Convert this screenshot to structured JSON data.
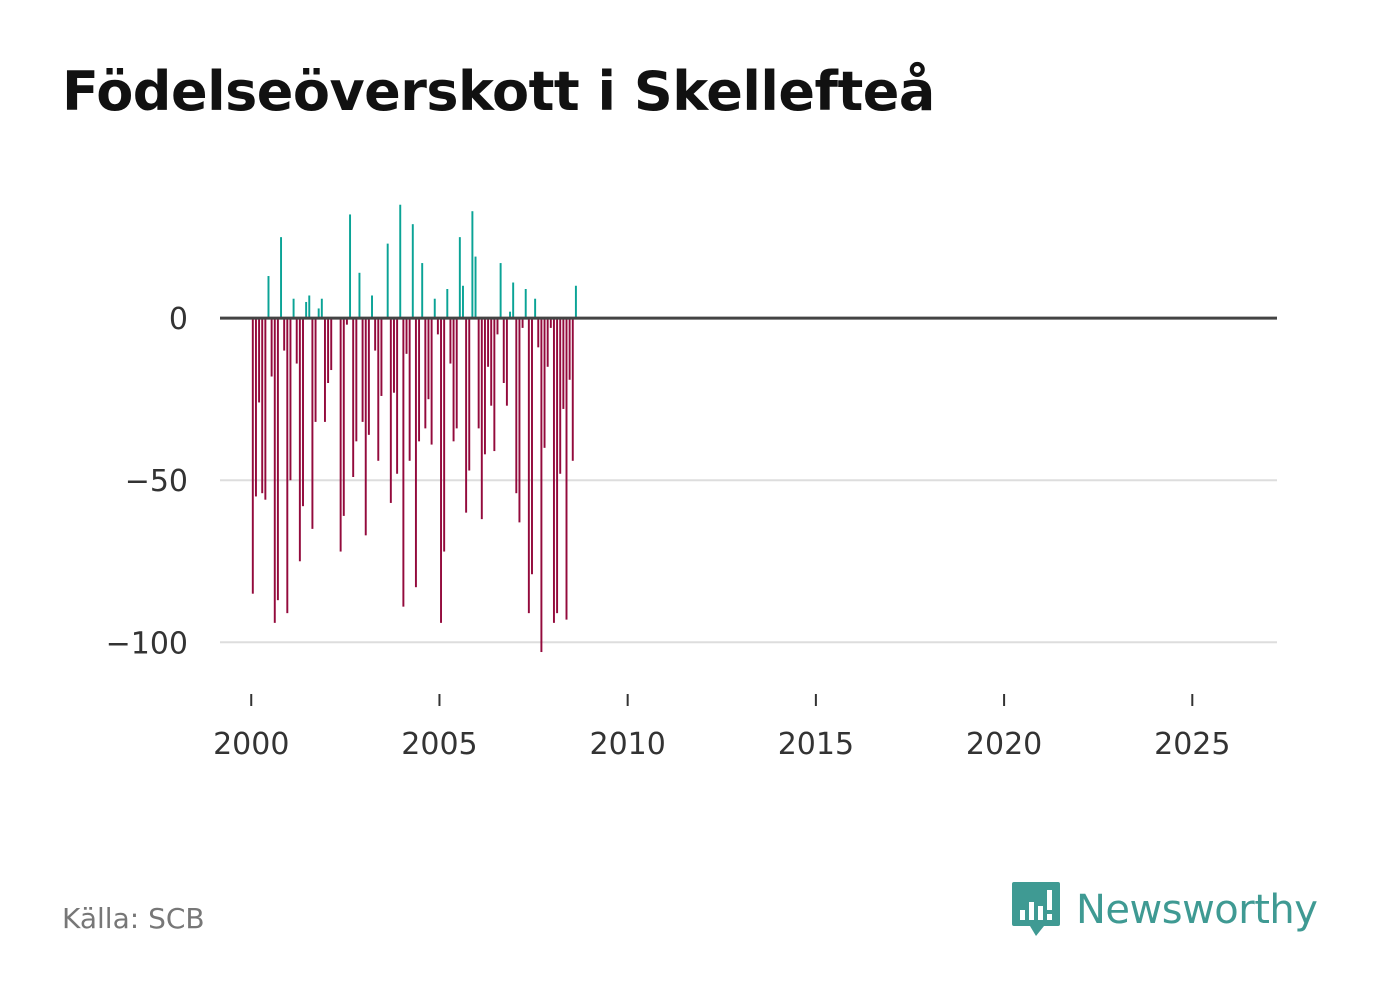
{
  "title": "Födelseöverskott i Skellefteå",
  "source": "Källa: SCB",
  "brand": {
    "name": "Newsworthy",
    "icon": "newsworthy-logo-icon"
  },
  "colors": {
    "positive": "#0aa396",
    "negative": "#930a3c",
    "baseline": "#444444",
    "grid": "#dddddd",
    "brand": "#3f9a93"
  },
  "chart_data": {
    "type": "bar",
    "title": "Födelseöverskott i Skellefteå",
    "xlabel": "",
    "ylabel": "",
    "ylim": [
      -107,
      38
    ],
    "xlim": [
      1999.17,
      2027.25
    ],
    "y_ticks": [
      0,
      -50,
      -100
    ],
    "y_tick_labels": [
      "0",
      "−50",
      "−100"
    ],
    "x_ticks": [
      2000,
      2005,
      2010,
      2015,
      2020,
      2025
    ],
    "x_tick_labels": [
      "2000",
      "2005",
      "2010",
      "2015",
      "2020",
      "2025"
    ],
    "grid": true,
    "start": "2000-01",
    "frequency": "monthly",
    "values": [
      -85,
      -55,
      -26,
      -54,
      -56,
      13,
      -18,
      -94,
      -87,
      25,
      -10,
      -91,
      -50,
      6,
      -14,
      -75,
      -58,
      5,
      7,
      -65,
      -32,
      3,
      6,
      -32,
      -20,
      -16,
      0,
      0,
      -72,
      -61,
      -2,
      32,
      -49,
      -38,
      14,
      -32,
      -67,
      -36,
      7,
      -10,
      -44,
      -24,
      0,
      23,
      -57,
      -23,
      -48,
      35,
      -89,
      -11,
      -44,
      29,
      -83,
      -38,
      17,
      -34,
      -25,
      -39,
      6,
      -5,
      -94,
      -72,
      9,
      -14,
      -38,
      -34,
      25,
      10,
      -60,
      -47,
      33,
      19,
      -34,
      -62,
      -42,
      -15,
      -27,
      -41,
      -5,
      17,
      -20,
      -27,
      2,
      11,
      -54,
      -63,
      -3,
      9,
      -91,
      -79,
      6,
      -9,
      -103,
      -40,
      -15,
      -3,
      -94,
      -91,
      -48,
      -28,
      -93,
      -19,
      -44,
      10
    ]
  }
}
